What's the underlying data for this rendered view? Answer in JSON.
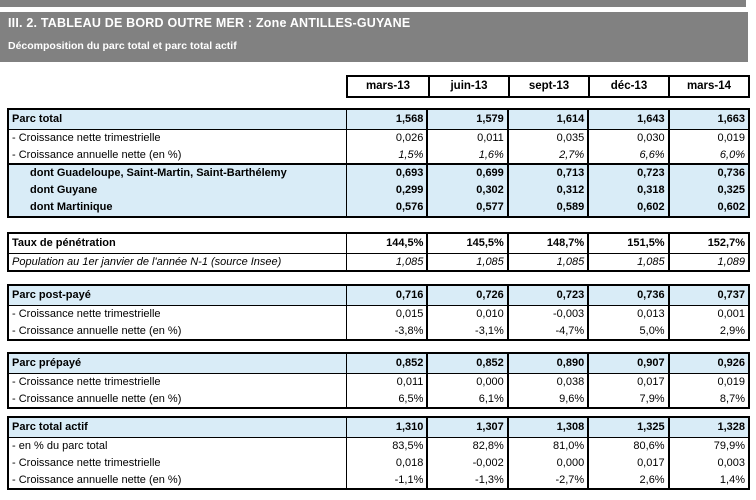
{
  "header": {
    "title": "III. 2. TABLEAU DE BORD OUTRE MER : Zone ANTILLES-GUYANE",
    "subtitle": "Décomposition du parc total et parc total actif"
  },
  "columns": [
    "mars-13",
    "juin-13",
    "sept-13",
    "déc-13",
    "mars-14"
  ],
  "sections": [
    {
      "name": "parc-total",
      "rows": [
        {
          "label": "Parc total",
          "values": [
            "1,568",
            "1,579",
            "1,614",
            "1,643",
            "1,663"
          ]
        },
        {
          "label": "- Croissance nette trimestrielle",
          "values": [
            "0,026",
            "0,011",
            "0,035",
            "0,030",
            "0,019"
          ]
        },
        {
          "label": "- Croissance annuelle nette (en %)",
          "values": [
            "1,5%",
            "1,6%",
            "2,7%",
            "6,6%",
            "6,0%"
          ]
        },
        {
          "label": "dont Guadeloupe, Saint-Martin, Saint-Barthélemy",
          "values": [
            "0,693",
            "0,699",
            "0,713",
            "0,723",
            "0,736"
          ]
        },
        {
          "label": "dont Guyane",
          "values": [
            "0,299",
            "0,302",
            "0,312",
            "0,318",
            "0,325"
          ]
        },
        {
          "label": "dont Martinique",
          "values": [
            "0,576",
            "0,577",
            "0,589",
            "0,602",
            "0,602"
          ]
        }
      ]
    },
    {
      "name": "taux-de-penetration",
      "rows": [
        {
          "label": "Taux de pénétration",
          "values": [
            "144,5%",
            "145,5%",
            "148,7%",
            "151,5%",
            "152,7%"
          ]
        },
        {
          "label": "Population au 1er janvier de l'année N-1 (source Insee)",
          "values": [
            "1,085",
            "1,085",
            "1,085",
            "1,085",
            "1,089"
          ]
        }
      ]
    },
    {
      "name": "parc-post-paye",
      "rows": [
        {
          "label": "Parc post-payé",
          "values": [
            "0,716",
            "0,726",
            "0,723",
            "0,736",
            "0,737"
          ]
        },
        {
          "label": "- Croissance nette trimestrielle",
          "values": [
            "0,015",
            "0,010",
            "-0,003",
            "0,013",
            "0,001"
          ]
        },
        {
          "label": "- Croissance annuelle nette (en %)",
          "values": [
            "-3,8%",
            "-3,1%",
            "-4,7%",
            "5,0%",
            "2,9%"
          ]
        }
      ]
    },
    {
      "name": "parc-prepaye",
      "rows": [
        {
          "label": "Parc prépayé",
          "values": [
            "0,852",
            "0,852",
            "0,890",
            "0,907",
            "0,926"
          ]
        },
        {
          "label": "- Croissance nette trimestrielle",
          "values": [
            "0,011",
            "0,000",
            "0,038",
            "0,017",
            "0,019"
          ]
        },
        {
          "label": "- Croissance annuelle nette (en %)",
          "values": [
            "6,5%",
            "6,1%",
            "9,6%",
            "7,9%",
            "8,7%"
          ]
        }
      ]
    },
    {
      "name": "parc-total-actif",
      "rows": [
        {
          "label": "Parc total actif",
          "values": [
            "1,310",
            "1,307",
            "1,308",
            "1,325",
            "1,328"
          ]
        },
        {
          "label": "- en % du parc total",
          "values": [
            "83,5%",
            "82,8%",
            "81,0%",
            "80,6%",
            "79,9%"
          ]
        },
        {
          "label": "- Croissance nette trimestrielle",
          "values": [
            "0,018",
            "-0,002",
            "0,000",
            "0,017",
            "0,003"
          ]
        },
        {
          "label": "- Croissance annuelle nette (en %)",
          "values": [
            "-1,1%",
            "-1,3%",
            "-2,7%",
            "2,6%",
            "1,4%"
          ]
        }
      ]
    }
  ],
  "colors": {
    "band_gray": "#818181",
    "row_highlight_blue": "#D9ECF7",
    "border_black": "#000000",
    "band_text": "#FFFFFF"
  }
}
